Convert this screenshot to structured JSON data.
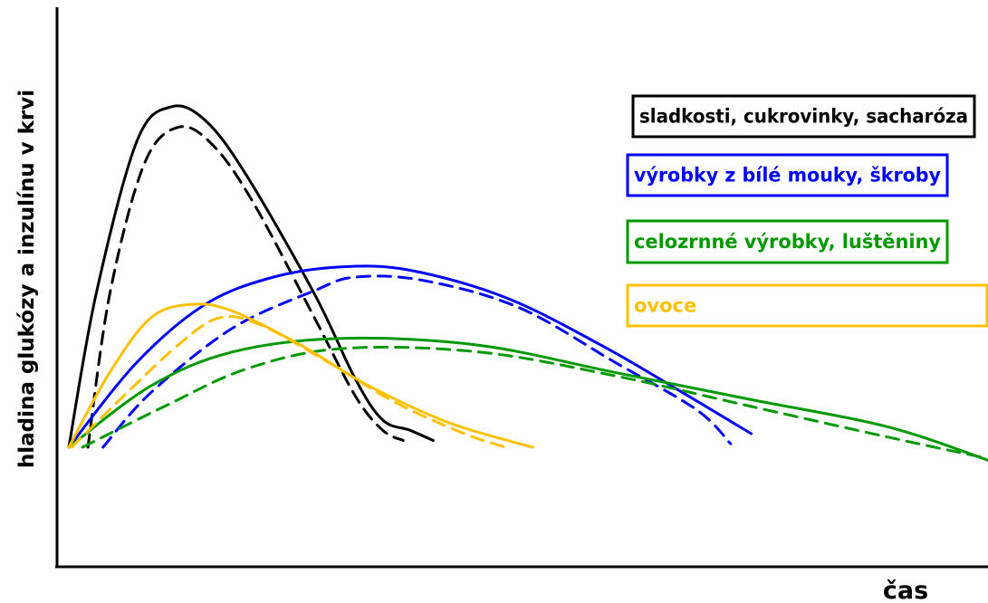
{
  "chart_data": {
    "type": "line",
    "xlabel": "čas",
    "ylabel": "hladina glukózy a inzulínu v krvi",
    "axes_ticks": false,
    "grid": false,
    "legend_position": "right",
    "series": [
      {
        "name": "sladkosti, cukrovinky, sacharóza",
        "color": "#000000",
        "solid": [
          [
            0,
            0
          ],
          [
            2,
            45
          ],
          [
            5,
            90
          ],
          [
            7.5,
            100
          ],
          [
            10,
            96
          ],
          [
            13,
            80
          ],
          [
            18,
            45
          ],
          [
            21,
            20
          ],
          [
            23,
            8
          ],
          [
            25,
            5
          ],
          [
            26.7,
            2
          ]
        ],
        "dashed": [
          [
            1.4,
            0
          ],
          [
            3,
            45
          ],
          [
            5.5,
            83
          ],
          [
            8,
            94
          ],
          [
            10.5,
            89
          ],
          [
            13.5,
            72
          ],
          [
            18,
            38
          ],
          [
            21,
            15
          ],
          [
            23,
            5
          ],
          [
            24.5,
            2
          ]
        ]
      },
      {
        "name": "výrobky z bílé mouky, škroby",
        "color": "#0000ff",
        "solid": [
          [
            0,
            0
          ],
          [
            5,
            25
          ],
          [
            10,
            42
          ],
          [
            15,
            50
          ],
          [
            20,
            53
          ],
          [
            25,
            52
          ],
          [
            32,
            44
          ],
          [
            39,
            30
          ],
          [
            45,
            16
          ],
          [
            50,
            4
          ]
        ],
        "dashed": [
          [
            2.5,
            0
          ],
          [
            6,
            16
          ],
          [
            12,
            35
          ],
          [
            18,
            46
          ],
          [
            21,
            50
          ],
          [
            26,
            49
          ],
          [
            33,
            41
          ],
          [
            40,
            25
          ],
          [
            46,
            11
          ],
          [
            48.5,
            1
          ]
        ]
      },
      {
        "name": "celozrnné výrobky, luštěniny",
        "color": "#009900",
        "solid": [
          [
            0,
            0
          ],
          [
            6,
            18
          ],
          [
            12,
            28
          ],
          [
            20,
            32
          ],
          [
            30,
            30
          ],
          [
            40,
            22
          ],
          [
            50,
            14
          ],
          [
            60,
            6
          ],
          [
            67.5,
            -4
          ]
        ],
        "dashed": [
          [
            1,
            0
          ],
          [
            7,
            12
          ],
          [
            13,
            23
          ],
          [
            20,
            29
          ],
          [
            30,
            28
          ],
          [
            40,
            21
          ],
          [
            50,
            12
          ],
          [
            60,
            3
          ],
          [
            67,
            -3
          ]
        ]
      },
      {
        "name": "ovoce",
        "color": "#ffc000",
        "solid": [
          [
            0,
            0
          ],
          [
            3,
            22
          ],
          [
            6,
            38
          ],
          [
            9,
            42
          ],
          [
            12,
            40
          ],
          [
            17,
            30
          ],
          [
            22,
            18
          ],
          [
            28,
            7
          ],
          [
            34,
            0
          ]
        ],
        "dashed": [
          [
            0.2,
            0
          ],
          [
            4,
            15
          ],
          [
            8,
            30
          ],
          [
            11,
            38
          ],
          [
            14,
            36
          ],
          [
            19,
            25
          ],
          [
            24,
            13
          ],
          [
            29,
            4
          ],
          [
            32,
            0
          ]
        ]
      }
    ]
  }
}
